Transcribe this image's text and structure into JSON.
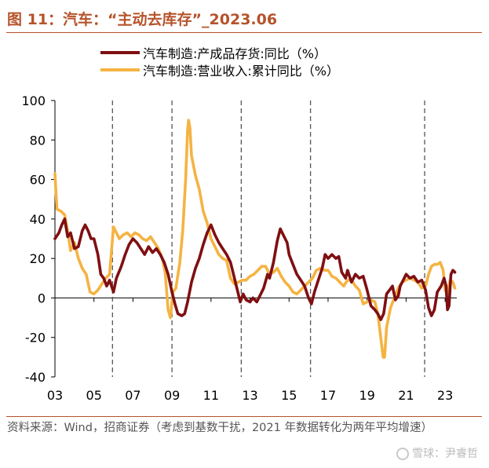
{
  "title": "图 11：汽车：“主动去库存”_2023.06",
  "colors": {
    "accent": "#b5532b",
    "series_inventory": "#7f0f12",
    "series_revenue": "#f5b342",
    "axis": "#000000",
    "divider": "#555555"
  },
  "source_text": "资料来源：Wind，招商证券（考虑到基数干扰，2021 年数据转化为两年平均增速）",
  "watermark": {
    "icon": "snowball-logo-icon",
    "text": "雪球：尹睿哲"
  },
  "chart_data": {
    "type": "line",
    "title": "汽车：“主动去库存”_2023.06",
    "xlabel": "",
    "ylabel": "",
    "ylim": [
      -40,
      100
    ],
    "yticks": [
      100,
      80,
      60,
      40,
      20,
      0,
      -20,
      -40
    ],
    "xlim": [
      2003.0,
      2023.6
    ],
    "xtick_labels": [
      "03",
      "05",
      "07",
      "09",
      "11",
      "13",
      "15",
      "17",
      "19",
      "21",
      "23"
    ],
    "xtick_years": [
      2003,
      2005,
      2007,
      2009,
      2011,
      2013,
      2015,
      2017,
      2019,
      2021,
      2023
    ],
    "divider_years": [
      2005.95,
      2009.0,
      2012.55,
      2016.1,
      2021.95
    ],
    "grid": false,
    "legend_position": "top-center",
    "series": [
      {
        "name": "汽车制造:产成品存货:同比（%）",
        "color": "#7f0f12",
        "points": [
          [
            2003.0,
            30
          ],
          [
            2003.2,
            33
          ],
          [
            2003.35,
            37
          ],
          [
            2003.5,
            40
          ],
          [
            2003.65,
            31
          ],
          [
            2003.8,
            33
          ],
          [
            2004.0,
            25
          ],
          [
            2004.2,
            26
          ],
          [
            2004.4,
            34
          ],
          [
            2004.55,
            37
          ],
          [
            2004.7,
            34
          ],
          [
            2004.85,
            30
          ],
          [
            2005.0,
            30
          ],
          [
            2005.2,
            22
          ],
          [
            2005.35,
            12
          ],
          [
            2005.5,
            10
          ],
          [
            2005.65,
            6
          ],
          [
            2005.8,
            9
          ],
          [
            2006.0,
            3
          ],
          [
            2006.15,
            10
          ],
          [
            2006.4,
            16
          ],
          [
            2006.6,
            22
          ],
          [
            2006.8,
            27
          ],
          [
            2007.0,
            30
          ],
          [
            2007.2,
            28
          ],
          [
            2007.4,
            25
          ],
          [
            2007.6,
            22
          ],
          [
            2007.8,
            26
          ],
          [
            2008.0,
            23
          ],
          [
            2008.2,
            25
          ],
          [
            2008.4,
            22
          ],
          [
            2008.6,
            18
          ],
          [
            2008.8,
            12
          ],
          [
            2009.0,
            3
          ],
          [
            2009.15,
            -3
          ],
          [
            2009.3,
            -8
          ],
          [
            2009.5,
            -9
          ],
          [
            2009.65,
            -8
          ],
          [
            2009.8,
            -2
          ],
          [
            2010.0,
            8
          ],
          [
            2010.2,
            15
          ],
          [
            2010.4,
            20
          ],
          [
            2010.6,
            27
          ],
          [
            2010.8,
            33
          ],
          [
            2011.0,
            37
          ],
          [
            2011.2,
            32
          ],
          [
            2011.4,
            28
          ],
          [
            2011.6,
            25
          ],
          [
            2011.8,
            22
          ],
          [
            2012.0,
            18
          ],
          [
            2012.2,
            10
          ],
          [
            2012.35,
            4
          ],
          [
            2012.5,
            -2
          ],
          [
            2012.65,
            2
          ],
          [
            2012.8,
            -1
          ],
          [
            2013.0,
            -2
          ],
          [
            2013.15,
            0
          ],
          [
            2013.35,
            -2
          ],
          [
            2013.5,
            1
          ],
          [
            2013.7,
            5
          ],
          [
            2013.9,
            12
          ],
          [
            2014.0,
            10
          ],
          [
            2014.2,
            18
          ],
          [
            2014.4,
            29
          ],
          [
            2014.55,
            35
          ],
          [
            2014.7,
            32
          ],
          [
            2014.9,
            28
          ],
          [
            2015.0,
            22
          ],
          [
            2015.2,
            17
          ],
          [
            2015.4,
            12
          ],
          [
            2015.6,
            9
          ],
          [
            2015.8,
            6
          ],
          [
            2016.0,
            0
          ],
          [
            2016.15,
            -3
          ],
          [
            2016.3,
            3
          ],
          [
            2016.5,
            9
          ],
          [
            2016.7,
            15
          ],
          [
            2016.85,
            22
          ],
          [
            2017.0,
            20
          ],
          [
            2017.2,
            22
          ],
          [
            2017.4,
            20
          ],
          [
            2017.55,
            21
          ],
          [
            2017.7,
            13
          ],
          [
            2017.9,
            10
          ],
          [
            2018.0,
            14
          ],
          [
            2018.2,
            8
          ],
          [
            2018.4,
            12
          ],
          [
            2018.6,
            10
          ],
          [
            2018.8,
            11
          ],
          [
            2019.0,
            4
          ],
          [
            2019.2,
            -4
          ],
          [
            2019.4,
            -6
          ],
          [
            2019.55,
            -8
          ],
          [
            2019.7,
            -11
          ],
          [
            2019.85,
            -8
          ],
          [
            2020.0,
            2
          ],
          [
            2020.15,
            4
          ],
          [
            2020.3,
            6
          ],
          [
            2020.45,
            -1
          ],
          [
            2020.6,
            1
          ],
          [
            2020.7,
            6
          ],
          [
            2020.85,
            9
          ],
          [
            2021.0,
            12
          ],
          [
            2021.2,
            10
          ],
          [
            2021.4,
            11
          ],
          [
            2021.6,
            8
          ],
          [
            2021.8,
            9
          ],
          [
            2022.0,
            4
          ],
          [
            2022.15,
            -5
          ],
          [
            2022.3,
            -9
          ],
          [
            2022.45,
            -6
          ],
          [
            2022.6,
            3
          ],
          [
            2022.8,
            6
          ],
          [
            2022.95,
            10
          ],
          [
            2023.05,
            6
          ],
          [
            2023.12,
            -6
          ],
          [
            2023.2,
            -4
          ],
          [
            2023.3,
            12
          ],
          [
            2023.4,
            14
          ],
          [
            2023.5,
            13
          ]
        ]
      },
      {
        "name": "汽车制造:营业收入:累计同比（%）",
        "color": "#f5b342",
        "points": [
          [
            2003.0,
            63
          ],
          [
            2003.1,
            45
          ],
          [
            2003.3,
            44
          ],
          [
            2003.5,
            42
          ],
          [
            2003.65,
            34
          ],
          [
            2003.8,
            24
          ],
          [
            2004.0,
            28
          ],
          [
            2004.2,
            20
          ],
          [
            2004.4,
            15
          ],
          [
            2004.6,
            12
          ],
          [
            2004.8,
            3
          ],
          [
            2005.0,
            2
          ],
          [
            2005.2,
            4
          ],
          [
            2005.4,
            7
          ],
          [
            2005.6,
            10
          ],
          [
            2005.8,
            12
          ],
          [
            2006.0,
            36
          ],
          [
            2006.15,
            33
          ],
          [
            2006.3,
            30
          ],
          [
            2006.5,
            32
          ],
          [
            2006.7,
            33
          ],
          [
            2006.9,
            31
          ],
          [
            2007.1,
            33
          ],
          [
            2007.3,
            32
          ],
          [
            2007.5,
            30
          ],
          [
            2007.7,
            29
          ],
          [
            2007.9,
            31
          ],
          [
            2008.1,
            28
          ],
          [
            2008.3,
            25
          ],
          [
            2008.5,
            20
          ],
          [
            2008.65,
            13
          ],
          [
            2008.8,
            -6
          ],
          [
            2008.92,
            -10
          ],
          [
            2009.05,
            3
          ],
          [
            2009.2,
            5
          ],
          [
            2009.4,
            18
          ],
          [
            2009.55,
            34
          ],
          [
            2009.7,
            60
          ],
          [
            2009.8,
            85
          ],
          [
            2009.85,
            90
          ],
          [
            2009.92,
            86
          ],
          [
            2010.0,
            72
          ],
          [
            2010.2,
            62
          ],
          [
            2010.4,
            55
          ],
          [
            2010.6,
            44
          ],
          [
            2010.8,
            38
          ],
          [
            2011.0,
            30
          ],
          [
            2011.2,
            26
          ],
          [
            2011.4,
            22
          ],
          [
            2011.6,
            20
          ],
          [
            2011.8,
            19
          ],
          [
            2012.0,
            10
          ],
          [
            2012.2,
            7
          ],
          [
            2012.4,
            8
          ],
          [
            2012.6,
            9
          ],
          [
            2012.8,
            9
          ],
          [
            2013.0,
            11
          ],
          [
            2013.2,
            12
          ],
          [
            2013.4,
            14
          ],
          [
            2013.6,
            16
          ],
          [
            2013.8,
            16
          ],
          [
            2014.0,
            12
          ],
          [
            2014.2,
            13
          ],
          [
            2014.4,
            15
          ],
          [
            2014.6,
            11
          ],
          [
            2014.8,
            8
          ],
          [
            2015.0,
            6
          ],
          [
            2015.2,
            3
          ],
          [
            2015.4,
            2
          ],
          [
            2015.6,
            4
          ],
          [
            2015.8,
            6
          ],
          [
            2016.0,
            8
          ],
          [
            2016.2,
            10
          ],
          [
            2016.4,
            14
          ],
          [
            2016.6,
            15
          ],
          [
            2016.8,
            14
          ],
          [
            2017.0,
            14
          ],
          [
            2017.2,
            11
          ],
          [
            2017.4,
            10
          ],
          [
            2017.6,
            8
          ],
          [
            2017.8,
            6
          ],
          [
            2018.0,
            9
          ],
          [
            2018.2,
            9
          ],
          [
            2018.4,
            6
          ],
          [
            2018.6,
            4
          ],
          [
            2018.8,
            -3
          ],
          [
            2019.0,
            -2
          ],
          [
            2019.2,
            -1
          ],
          [
            2019.4,
            -2
          ],
          [
            2019.55,
            -8
          ],
          [
            2019.7,
            -20
          ],
          [
            2019.82,
            -30
          ],
          [
            2019.9,
            -30
          ],
          [
            2020.0,
            -15
          ],
          [
            2020.2,
            -5
          ],
          [
            2020.4,
            0
          ],
          [
            2020.6,
            5
          ],
          [
            2020.8,
            8
          ],
          [
            2021.0,
            9
          ],
          [
            2021.2,
            10
          ],
          [
            2021.4,
            9
          ],
          [
            2021.6,
            8
          ],
          [
            2021.8,
            5
          ],
          [
            2022.0,
            6
          ],
          [
            2022.15,
            12
          ],
          [
            2022.3,
            16
          ],
          [
            2022.45,
            17
          ],
          [
            2022.6,
            17
          ],
          [
            2022.75,
            18
          ],
          [
            2022.9,
            14
          ],
          [
            2023.0,
            4
          ],
          [
            2023.1,
            2
          ],
          [
            2023.25,
            9
          ],
          [
            2023.4,
            8
          ],
          [
            2023.5,
            5
          ]
        ]
      }
    ]
  }
}
